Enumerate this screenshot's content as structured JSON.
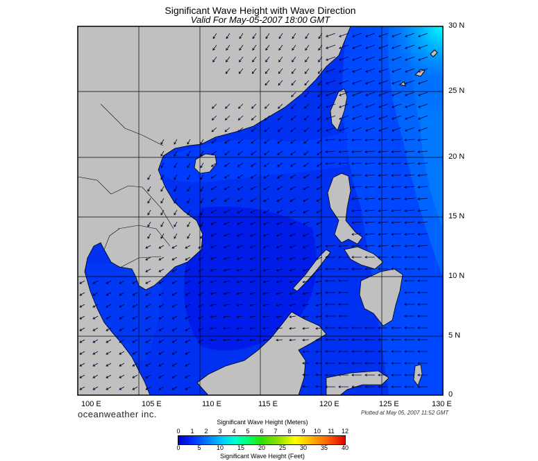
{
  "title": "Significant Wave Height with Wave Direction",
  "subtitle": "Valid For May-05-2007 18:00 GMT",
  "lat_labels": [
    "30 N",
    "25 N",
    "20 N",
    "15 N",
    "10 N",
    "5 N",
    "0"
  ],
  "lon_labels": [
    "100 E",
    "105 E",
    "110 E",
    "115 E",
    "120 E",
    "125 E",
    "130 E"
  ],
  "brand": "oceanweather inc.",
  "plotted": "Plotted at May 05, 2007 11:52 GMT",
  "colorbar": {
    "meters_title": "Significant Wave Height (Meters)",
    "feet_title": "Significant Wave Height (Feet)",
    "meters_ticks": [
      "0",
      "1",
      "2",
      "3",
      "4",
      "5",
      "6",
      "7",
      "8",
      "9",
      "10",
      "11",
      "12"
    ],
    "feet_ticks": [
      "0",
      "5",
      "10",
      "15",
      "20",
      "25",
      "30",
      "35",
      "40"
    ]
  },
  "colors": {
    "land": "#c0c0c0",
    "deep_low": "#0010e0",
    "low": "#0030f0",
    "mid": "#0060ff",
    "high": "#00e0ff",
    "arrow": "#000033"
  }
}
